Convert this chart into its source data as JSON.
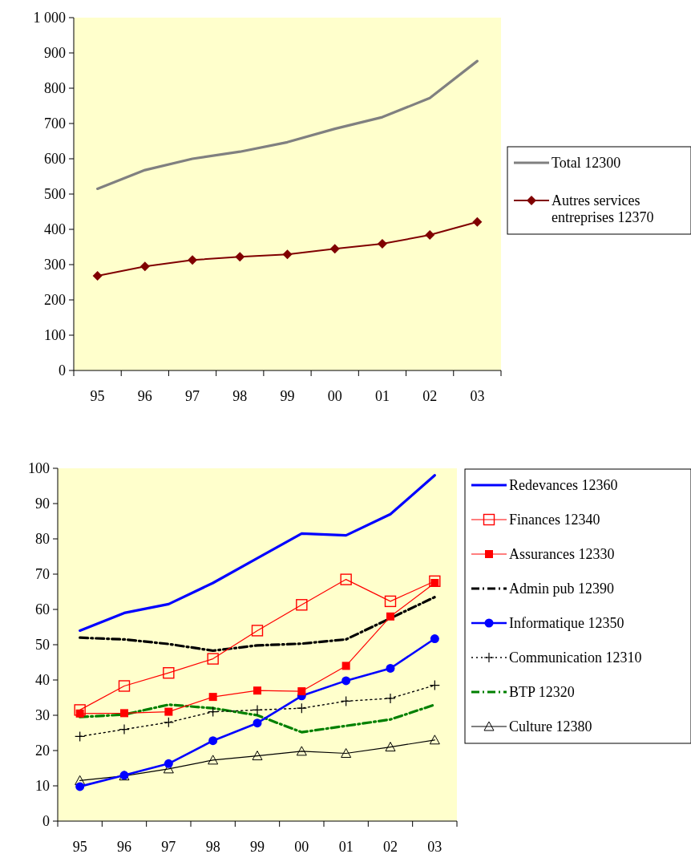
{
  "chart_data": [
    {
      "type": "line",
      "categories": [
        "95",
        "96",
        "97",
        "98",
        "99",
        "00",
        "01",
        "02",
        "03"
      ],
      "ylim": [
        0,
        1000
      ],
      "yticks": [
        0,
        100,
        200,
        300,
        400,
        500,
        600,
        700,
        800,
        900,
        {
          "value": 1000,
          "label": "1 000"
        }
      ],
      "grid": false,
      "legend": "right",
      "series": [
        {
          "name": "Total 12300",
          "color": "#808080",
          "marker": "none",
          "line_style": "solid",
          "values": [
            515,
            568,
            600,
            620,
            647,
            685,
            718,
            772,
            877
          ]
        },
        {
          "name": "Autres services entreprises 12370",
          "color": "#800000",
          "marker": "diamond",
          "line_style": "solid",
          "values": [
            268,
            295,
            313,
            322,
            329,
            345,
            359,
            384,
            421
          ]
        }
      ]
    },
    {
      "type": "line",
      "categories": [
        "95",
        "96",
        "97",
        "98",
        "99",
        "00",
        "01",
        "02",
        "03"
      ],
      "ylim": [
        0,
        100
      ],
      "yticks": [
        0,
        10,
        20,
        30,
        40,
        50,
        60,
        70,
        80,
        90,
        100
      ],
      "grid": false,
      "legend": "right",
      "series": [
        {
          "name": "Redevances 12360",
          "color": "#0000ff",
          "marker": "none",
          "line_style": "solid",
          "values": [
            54,
            59,
            61.5,
            67.5,
            74.5,
            81.5,
            81,
            87,
            98
          ]
        },
        {
          "name": "Finances 12340",
          "color": "#ff0000",
          "marker": "square-open",
          "line_style": "solid",
          "values": [
            31.5,
            38.3,
            42,
            46,
            54,
            61.3,
            68.5,
            62.3,
            68
          ]
        },
        {
          "name": "Assurances 12330",
          "color": "#ff0000",
          "marker": "square",
          "line_style": "solid",
          "values": [
            30.5,
            30.6,
            31,
            35.2,
            37,
            36.8,
            44,
            58,
            67.5
          ]
        },
        {
          "name": "Admin pub 12390",
          "color": "#000000",
          "marker": "none",
          "line_style": "dashdot",
          "values": [
            52,
            51.5,
            50.2,
            48.3,
            49.8,
            50.3,
            51.5,
            57.5,
            63.5
          ]
        },
        {
          "name": "Informatique 12350",
          "color": "#0000ff",
          "marker": "circle",
          "line_style": "solid",
          "values": [
            9.8,
            13,
            16.3,
            22.8,
            27.8,
            35.5,
            39.8,
            43.3,
            51.7
          ]
        },
        {
          "name": "Communication 12310",
          "color": "#000000",
          "marker": "cross",
          "line_style": "dotted",
          "values": [
            24,
            26,
            28,
            31,
            31.5,
            32,
            34,
            34.8,
            38.5
          ]
        },
        {
          "name": "BTP 12320",
          "color": "#008000",
          "marker": "none",
          "line_style": "dashdot",
          "values": [
            29.5,
            30.2,
            33,
            32,
            30,
            25.2,
            27,
            28.8,
            33
          ]
        },
        {
          "name": "Culture 12380",
          "color": "#000000",
          "marker": "triangle-open",
          "line_style": "solid",
          "values": [
            11.5,
            12.8,
            14.8,
            17.3,
            18.5,
            19.8,
            19.2,
            21,
            23
          ]
        }
      ]
    }
  ]
}
